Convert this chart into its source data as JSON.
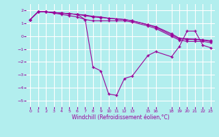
{
  "bg_color": "#b2eeee",
  "grid_color": "#ffffff",
  "line_color": "#990099",
  "xlabel": "Windchill (Refroidissement éolien,°C)",
  "xlim": [
    -0.5,
    23.5
  ],
  "ylim": [
    -5.5,
    2.5
  ],
  "yticks": [
    -5,
    -4,
    -3,
    -2,
    -1,
    0,
    1,
    2
  ],
  "xtick_positions": [
    0,
    1,
    2,
    3,
    4,
    5,
    6,
    7,
    8,
    9,
    10,
    11,
    12,
    13,
    15,
    16,
    18,
    19,
    20,
    21,
    22,
    23
  ],
  "xtick_labels": [
    "0",
    "1",
    "2",
    "3",
    "4",
    "5",
    "6",
    "7",
    "8",
    "9",
    "10",
    "11",
    "12",
    "13",
    "15",
    "16",
    "18",
    "19",
    "20",
    "21",
    "22",
    "23"
  ],
  "series_main_x": [
    0,
    1,
    2,
    3,
    4,
    5,
    6,
    7,
    8,
    9,
    10,
    11,
    12,
    13,
    15,
    16,
    18,
    19,
    20,
    21,
    22,
    23
  ],
  "series_main_y": [
    1.3,
    1.9,
    1.9,
    1.85,
    1.8,
    1.75,
    1.7,
    1.3,
    -2.4,
    -2.7,
    -4.5,
    -4.6,
    -3.3,
    -3.1,
    -1.5,
    -1.2,
    -1.6,
    -0.8,
    0.4,
    0.4,
    -0.7,
    -0.9
  ],
  "series1_x": [
    0,
    1,
    2,
    3,
    4,
    5,
    6,
    7,
    8,
    9,
    10,
    11,
    12,
    13,
    15,
    16,
    18,
    19,
    20,
    21,
    22,
    23
  ],
  "series1_y": [
    1.3,
    1.9,
    1.9,
    1.85,
    1.8,
    1.75,
    1.7,
    1.65,
    1.55,
    1.5,
    1.4,
    1.35,
    1.3,
    1.2,
    0.9,
    0.75,
    0.2,
    -0.15,
    -0.2,
    -0.22,
    -0.28,
    -0.35
  ],
  "series2_x": [
    0,
    1,
    2,
    3,
    4,
    5,
    6,
    7,
    8,
    9,
    10,
    11,
    12,
    13,
    15,
    16,
    18,
    19,
    20,
    21,
    22,
    23
  ],
  "series2_y": [
    1.3,
    1.9,
    1.9,
    1.85,
    1.8,
    1.75,
    1.7,
    1.6,
    1.5,
    1.45,
    1.4,
    1.35,
    1.3,
    1.2,
    0.9,
    0.7,
    0.1,
    -0.2,
    -0.25,
    -0.25,
    -0.3,
    -0.4
  ],
  "series3_x": [
    0,
    1,
    2,
    3,
    4,
    5,
    6,
    7,
    8,
    9,
    10,
    11,
    12,
    13,
    15,
    16,
    18,
    19,
    20,
    21,
    22,
    23
  ],
  "series3_y": [
    1.3,
    1.9,
    1.9,
    1.8,
    1.7,
    1.6,
    1.5,
    1.3,
    1.2,
    1.2,
    1.2,
    1.2,
    1.2,
    1.1,
    0.8,
    0.6,
    0.0,
    -0.3,
    -0.4,
    -0.4,
    -0.4,
    -0.5
  ]
}
